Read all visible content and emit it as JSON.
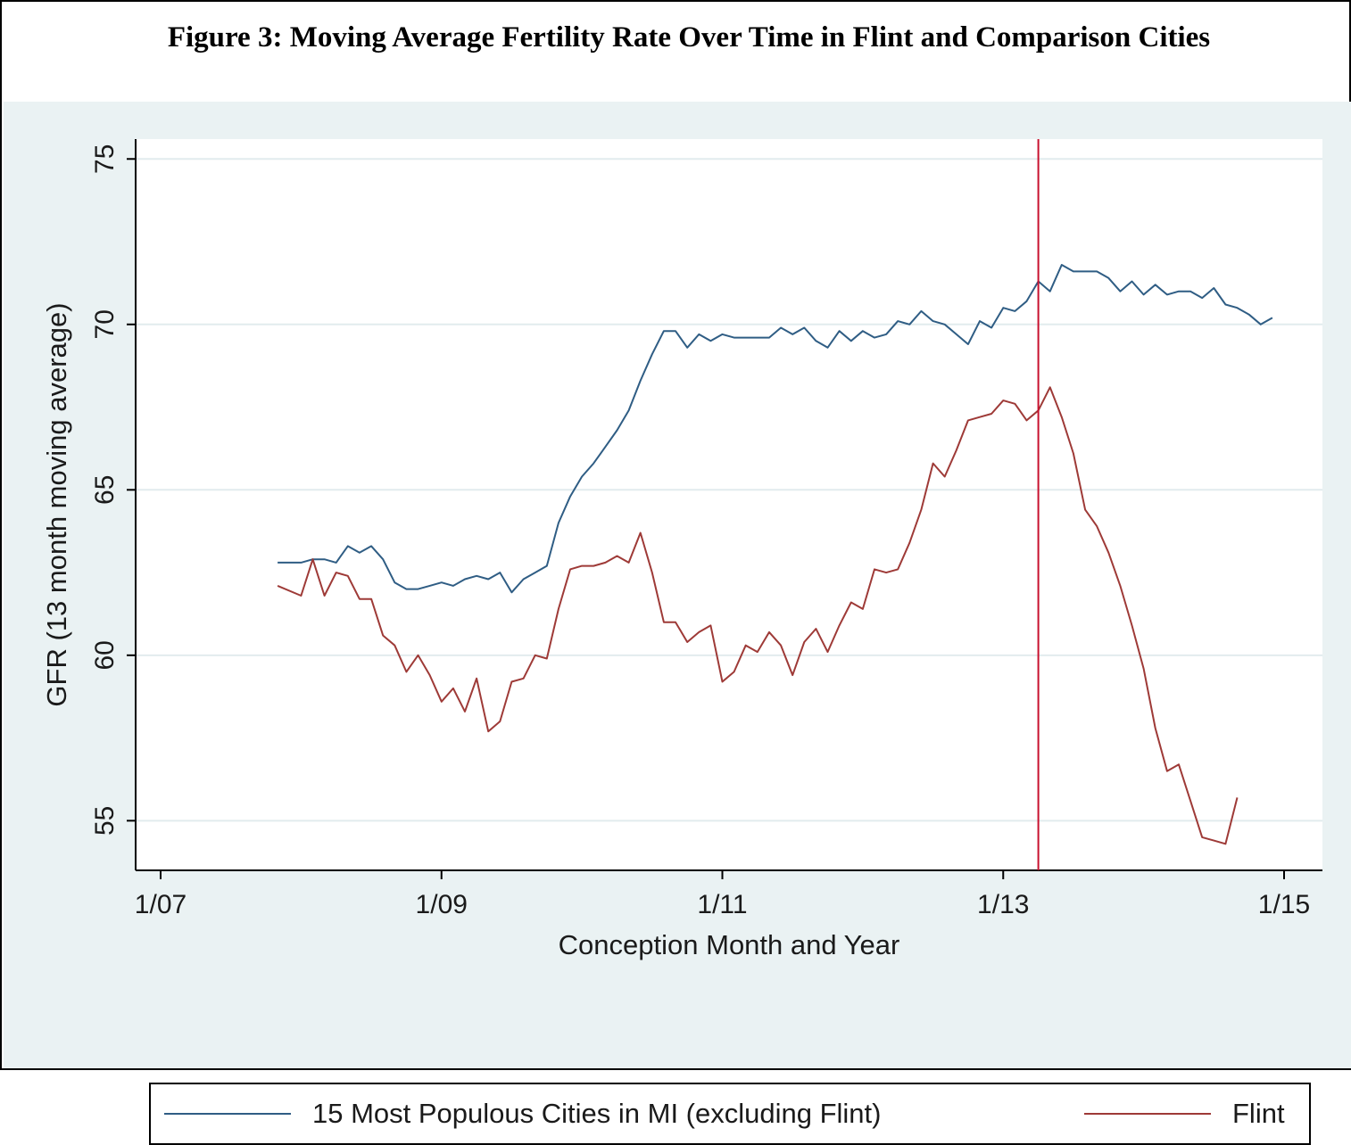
{
  "figure_title": "Figure 3: Moving Average Fertility Rate Over Time in Flint and Comparison Cities",
  "colors": {
    "background_plot_area": "#eaf2f3",
    "plot_panel": "#ffffff",
    "series_comparison": "#2f5d84",
    "series_flint": "#9e3a37",
    "reference_line": "#c8102e",
    "grid": "#e2ecee"
  },
  "legend": {
    "position": "bottom",
    "items": [
      {
        "label": "15 Most Populous Cities in MI (excluding Flint)"
      },
      {
        "label": "Flint"
      }
    ]
  },
  "chart_data": {
    "type": "line",
    "xlabel": "Conception Month and Year",
    "ylabel": "GFR (13 month moving average)",
    "xlim": [
      "2007-01",
      "2015-01"
    ],
    "ylim": [
      53.5,
      75.6
    ],
    "x_ticks": [
      {
        "value": "2007-01",
        "label": "1/07"
      },
      {
        "value": "2009-01",
        "label": "1/09"
      },
      {
        "value": "2011-01",
        "label": "1/11"
      },
      {
        "value": "2013-01",
        "label": "1/13"
      },
      {
        "value": "2015-01",
        "label": "1/15"
      }
    ],
    "y_ticks": [
      55,
      60,
      65,
      70,
      75
    ],
    "grid": true,
    "vertical_reference_line": "2013-04",
    "series": [
      {
        "name": "15 Most Populous Cities in MI (excluding Flint)",
        "color": "#2f5d84",
        "points": [
          [
            "2007-11",
            62.8
          ],
          [
            "2008-01",
            62.8
          ],
          [
            "2008-02",
            62.9
          ],
          [
            "2008-03",
            62.9
          ],
          [
            "2008-04",
            62.8
          ],
          [
            "2008-05",
            63.3
          ],
          [
            "2008-06",
            63.1
          ],
          [
            "2008-07",
            63.3
          ],
          [
            "2008-08",
            62.9
          ],
          [
            "2008-09",
            62.2
          ],
          [
            "2008-10",
            62.0
          ],
          [
            "2008-11",
            62.0
          ],
          [
            "2008-12",
            62.1
          ],
          [
            "2009-01",
            62.2
          ],
          [
            "2009-02",
            62.1
          ],
          [
            "2009-03",
            62.3
          ],
          [
            "2009-04",
            62.4
          ],
          [
            "2009-05",
            62.3
          ],
          [
            "2009-06",
            62.5
          ],
          [
            "2009-07",
            61.9
          ],
          [
            "2009-08",
            62.3
          ],
          [
            "2009-09",
            62.5
          ],
          [
            "2009-10",
            62.7
          ],
          [
            "2009-11",
            64.0
          ],
          [
            "2009-12",
            64.8
          ],
          [
            "2010-01",
            65.4
          ],
          [
            "2010-02",
            65.8
          ],
          [
            "2010-03",
            66.3
          ],
          [
            "2010-04",
            66.8
          ],
          [
            "2010-05",
            67.4
          ],
          [
            "2010-06",
            68.3
          ],
          [
            "2010-07",
            69.1
          ],
          [
            "2010-08",
            69.8
          ],
          [
            "2010-09",
            69.8
          ],
          [
            "2010-10",
            69.3
          ],
          [
            "2010-11",
            69.7
          ],
          [
            "2010-12",
            69.5
          ],
          [
            "2011-01",
            69.7
          ],
          [
            "2011-02",
            69.6
          ],
          [
            "2011-03",
            69.6
          ],
          [
            "2011-04",
            69.6
          ],
          [
            "2011-05",
            69.6
          ],
          [
            "2011-06",
            69.9
          ],
          [
            "2011-07",
            69.7
          ],
          [
            "2011-08",
            69.9
          ],
          [
            "2011-09",
            69.5
          ],
          [
            "2011-10",
            69.3
          ],
          [
            "2011-11",
            69.8
          ],
          [
            "2011-12",
            69.5
          ],
          [
            "2012-01",
            69.8
          ],
          [
            "2012-02",
            69.6
          ],
          [
            "2012-03",
            69.7
          ],
          [
            "2012-04",
            70.1
          ],
          [
            "2012-05",
            70.0
          ],
          [
            "2012-06",
            70.4
          ],
          [
            "2012-07",
            70.1
          ],
          [
            "2012-08",
            70.0
          ],
          [
            "2012-09",
            69.7
          ],
          [
            "2012-10",
            69.4
          ],
          [
            "2012-11",
            70.1
          ],
          [
            "2012-12",
            69.9
          ],
          [
            "2013-01",
            70.5
          ],
          [
            "2013-02",
            70.4
          ],
          [
            "2013-03",
            70.7
          ],
          [
            "2013-04",
            71.3
          ],
          [
            "2013-05",
            71.0
          ],
          [
            "2013-06",
            71.8
          ],
          [
            "2013-07",
            71.6
          ],
          [
            "2013-08",
            71.6
          ],
          [
            "2013-09",
            71.6
          ],
          [
            "2013-10",
            71.4
          ],
          [
            "2013-11",
            71.0
          ],
          [
            "2013-12",
            71.3
          ],
          [
            "2014-01",
            70.9
          ],
          [
            "2014-02",
            71.2
          ],
          [
            "2014-03",
            70.9
          ],
          [
            "2014-04",
            71.0
          ],
          [
            "2014-05",
            71.0
          ],
          [
            "2014-06",
            70.8
          ],
          [
            "2014-07",
            71.1
          ],
          [
            "2014-08",
            70.6
          ],
          [
            "2014-09",
            70.5
          ],
          [
            "2014-10",
            70.3
          ],
          [
            "2014-11",
            70.0
          ],
          [
            "2014-12",
            70.2
          ]
        ]
      },
      {
        "name": "Flint",
        "color": "#9e3a37",
        "points": [
          [
            "2007-11",
            62.1
          ],
          [
            "2008-01",
            61.8
          ],
          [
            "2008-02",
            62.9
          ],
          [
            "2008-03",
            61.8
          ],
          [
            "2008-04",
            62.5
          ],
          [
            "2008-05",
            62.4
          ],
          [
            "2008-06",
            61.7
          ],
          [
            "2008-07",
            61.7
          ],
          [
            "2008-08",
            60.6
          ],
          [
            "2008-09",
            60.3
          ],
          [
            "2008-10",
            59.5
          ],
          [
            "2008-11",
            60.0
          ],
          [
            "2008-12",
            59.4
          ],
          [
            "2009-01",
            58.6
          ],
          [
            "2009-02",
            59.0
          ],
          [
            "2009-03",
            58.3
          ],
          [
            "2009-04",
            59.3
          ],
          [
            "2009-05",
            57.7
          ],
          [
            "2009-06",
            58.0
          ],
          [
            "2009-07",
            59.2
          ],
          [
            "2009-08",
            59.3
          ],
          [
            "2009-09",
            60.0
          ],
          [
            "2009-10",
            59.9
          ],
          [
            "2009-11",
            61.4
          ],
          [
            "2009-12",
            62.6
          ],
          [
            "2010-01",
            62.7
          ],
          [
            "2010-02",
            62.7
          ],
          [
            "2010-03",
            62.8
          ],
          [
            "2010-04",
            63.0
          ],
          [
            "2010-05",
            62.8
          ],
          [
            "2010-06",
            63.7
          ],
          [
            "2010-07",
            62.5
          ],
          [
            "2010-08",
            61.0
          ],
          [
            "2010-09",
            61.0
          ],
          [
            "2010-10",
            60.4
          ],
          [
            "2010-11",
            60.7
          ],
          [
            "2010-12",
            60.9
          ],
          [
            "2011-01",
            59.2
          ],
          [
            "2011-02",
            59.5
          ],
          [
            "2011-03",
            60.3
          ],
          [
            "2011-04",
            60.1
          ],
          [
            "2011-05",
            60.7
          ],
          [
            "2011-06",
            60.3
          ],
          [
            "2011-07",
            59.4
          ],
          [
            "2011-08",
            60.4
          ],
          [
            "2011-09",
            60.8
          ],
          [
            "2011-10",
            60.1
          ],
          [
            "2011-11",
            60.9
          ],
          [
            "2011-12",
            61.6
          ],
          [
            "2012-01",
            61.4
          ],
          [
            "2012-02",
            62.6
          ],
          [
            "2012-03",
            62.5
          ],
          [
            "2012-04",
            62.6
          ],
          [
            "2012-05",
            63.4
          ],
          [
            "2012-06",
            64.4
          ],
          [
            "2012-07",
            65.8
          ],
          [
            "2012-08",
            65.4
          ],
          [
            "2012-09",
            66.2
          ],
          [
            "2012-10",
            67.1
          ],
          [
            "2012-11",
            67.2
          ],
          [
            "2012-12",
            67.3
          ],
          [
            "2013-01",
            67.7
          ],
          [
            "2013-02",
            67.6
          ],
          [
            "2013-03",
            67.1
          ],
          [
            "2013-04",
            67.4
          ],
          [
            "2013-05",
            68.1
          ],
          [
            "2013-06",
            67.2
          ],
          [
            "2013-07",
            66.1
          ],
          [
            "2013-08",
            64.4
          ],
          [
            "2013-09",
            63.9
          ],
          [
            "2013-10",
            63.1
          ],
          [
            "2013-11",
            62.1
          ],
          [
            "2013-12",
            60.9
          ],
          [
            "2014-01",
            59.6
          ],
          [
            "2014-02",
            57.8
          ],
          [
            "2014-03",
            56.5
          ],
          [
            "2014-04",
            56.7
          ],
          [
            "2014-05",
            55.6
          ],
          [
            "2014-06",
            54.5
          ],
          [
            "2014-07",
            54.4
          ],
          [
            "2014-08",
            54.3
          ],
          [
            "2014-09",
            55.7
          ]
        ]
      }
    ]
  }
}
